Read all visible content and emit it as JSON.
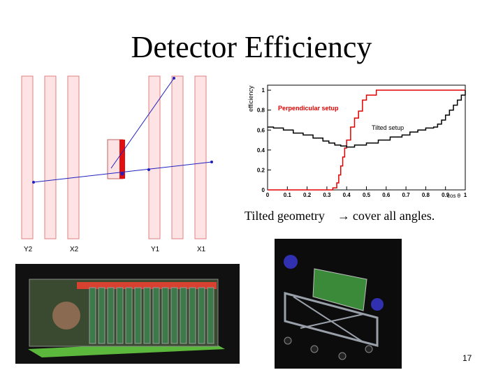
{
  "slide": {
    "title": "Detector Efficiency",
    "caption_left": "Tilted geometry",
    "caption_right": "cover all angles.",
    "page_number": "17"
  },
  "geometry": {
    "plane_labels": [
      "Y2",
      "X2",
      "Y1",
      "X1"
    ]
  },
  "colors": {
    "plane_fill": "#fde3e3",
    "plane_stroke": "#e08080",
    "track": "#2020c0",
    "chamber_red": "#e01010",
    "perpendicular": "#e00000",
    "tilted": "#000000"
  },
  "chart_data": {
    "type": "line",
    "xlabel": "cos θ",
    "ylabel": "efficiency",
    "xlim": [
      0,
      1
    ],
    "ylim": [
      0,
      1.05
    ],
    "x_ticks": [
      "0",
      "0.1",
      "0.2",
      "0.3",
      "0.4",
      "0.5",
      "0.6",
      "0.7",
      "0.8",
      "0.9",
      "1"
    ],
    "y_ticks": [
      "0",
      "0.2",
      "0.4",
      "0.6",
      "0.8",
      "1"
    ],
    "grid": false,
    "series": [
      {
        "name": "Perpendicular setup",
        "color": "#e00000",
        "x": [
          0,
          0.3,
          0.33,
          0.35,
          0.36,
          0.37,
          0.38,
          0.39,
          0.4,
          0.42,
          0.44,
          0.46,
          0.48,
          0.5,
          0.55,
          1.0
        ],
        "y": [
          0,
          0,
          0.02,
          0.07,
          0.15,
          0.24,
          0.33,
          0.42,
          0.5,
          0.63,
          0.72,
          0.79,
          0.9,
          0.95,
          1.0,
          1.0
        ]
      },
      {
        "name": "Tilted setup",
        "color": "#000000",
        "x": [
          0,
          0.03,
          0.08,
          0.13,
          0.18,
          0.23,
          0.28,
          0.31,
          0.34,
          0.37,
          0.4,
          0.44,
          0.5,
          0.56,
          0.62,
          0.68,
          0.72,
          0.76,
          0.8,
          0.84,
          0.86,
          0.88,
          0.9,
          0.92,
          0.94,
          0.96,
          0.98,
          1.0
        ],
        "y": [
          0.63,
          0.62,
          0.6,
          0.57,
          0.55,
          0.52,
          0.49,
          0.47,
          0.45,
          0.44,
          0.43,
          0.45,
          0.47,
          0.5,
          0.53,
          0.55,
          0.58,
          0.6,
          0.62,
          0.63,
          0.66,
          0.7,
          0.75,
          0.8,
          0.85,
          0.9,
          0.95,
          1.0
        ]
      }
    ]
  }
}
